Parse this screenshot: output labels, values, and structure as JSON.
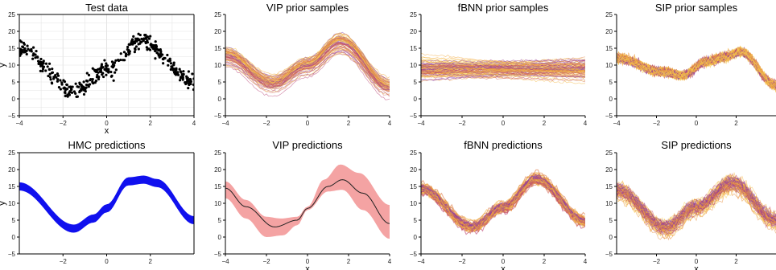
{
  "figure": {
    "panels": [
      {
        "id": "p1",
        "title": "Test data",
        "xlabel": "x",
        "ylabel": "y"
      },
      {
        "id": "p2",
        "title": "VIP prior samples",
        "xlabel": "",
        "ylabel": ""
      },
      {
        "id": "p3",
        "title": "fBNN prior samples",
        "xlabel": "",
        "ylabel": ""
      },
      {
        "id": "p4",
        "title": "SIP prior samples",
        "xlabel": "",
        "ylabel": ""
      },
      {
        "id": "p5",
        "title": "HMC predictions",
        "xlabel": "",
        "ylabel": "y"
      },
      {
        "id": "p6",
        "title": "VIP predictions",
        "xlabel": "x",
        "ylabel": ""
      },
      {
        "id": "p7",
        "title": "fBNN predictions",
        "xlabel": "x",
        "ylabel": ""
      },
      {
        "id": "p8",
        "title": "SIP predictions",
        "xlabel": "x",
        "ylabel": ""
      }
    ]
  },
  "colors": {
    "black": "#000000",
    "blue": "#1010ee",
    "purple": "#7b3fb8",
    "magenta": "#c2456e",
    "orange": "#f0a030",
    "yellow": "#f7d35a",
    "salmon": "#f4a3a3",
    "pale_yellow": "#fbe9a6",
    "grid": "#e4e4e4",
    "axis": "#000000"
  },
  "chart_data": [
    {
      "type": "scatter",
      "title": "Test data",
      "xlabel": "x",
      "ylabel": "y",
      "xlim": [
        -4,
        4
      ],
      "ylim": [
        -5,
        25
      ],
      "xticks": [
        -4,
        -2,
        0,
        2,
        4
      ],
      "yticks": [
        -5,
        0,
        5,
        10,
        15,
        20,
        25
      ],
      "grid": true,
      "series": [
        {
          "x_range": [
            -4,
            4
          ],
          "trend": [
            [
              -4,
              15
            ],
            [
              -1.5,
              2.5
            ],
            [
              0,
              8.5
            ],
            [
              1.6,
              17
            ],
            [
              4,
              5
            ]
          ],
          "noise_sd": 2.0,
          "count": 400
        }
      ]
    },
    {
      "type": "line",
      "title": "VIP prior samples",
      "xlim": [
        -4,
        4
      ],
      "ylim": [
        -5,
        25
      ],
      "xticks": [
        -4,
        -2,
        0,
        2,
        4
      ],
      "yticks": [
        -5,
        0,
        5,
        10,
        15,
        20,
        25
      ],
      "series": [
        {
          "mean": [
            [
              -4,
              13
            ],
            [
              -1.7,
              4.5
            ],
            [
              0,
              10
            ],
            [
              1.6,
              17
            ],
            [
              4,
              3.5
            ]
          ],
          "spread": 4.5,
          "count": 70
        }
      ]
    },
    {
      "type": "line",
      "title": "fBNN prior samples",
      "xlim": [
        -4,
        4
      ],
      "ylim": [
        -5,
        25
      ],
      "xticks": [
        -4,
        -2,
        0,
        2,
        4
      ],
      "yticks": [
        -5,
        0,
        5,
        10,
        15,
        20,
        25
      ],
      "series": [
        {
          "mean": [
            [
              -4,
              8.8
            ],
            [
              4,
              8.8
            ]
          ],
          "spread": 4.0,
          "count": 90
        }
      ]
    },
    {
      "type": "line",
      "title": "SIP prior samples",
      "xlim": [
        -4,
        4
      ],
      "ylim": [
        -5,
        25
      ],
      "xticks": [
        -4,
        -2,
        0,
        2
      ],
      "yticks": [
        -5,
        0,
        5,
        10,
        15,
        20,
        25
      ],
      "series": [
        {
          "mean": [
            [
              -4,
              12
            ],
            [
              -1.7,
              8
            ],
            [
              -0.7,
              7
            ],
            [
              0.5,
              11
            ],
            [
              1.5,
              12.5
            ],
            [
              2.2,
              14
            ],
            [
              4,
              4
            ]
          ],
          "spread": 2.0,
          "count": 80
        }
      ]
    },
    {
      "type": "line",
      "title": "HMC predictions",
      "ylabel": "y",
      "xlim": [
        -4,
        4
      ],
      "ylim": [
        -5,
        25
      ],
      "xticks": [
        -2,
        0,
        2
      ],
      "yticks": [
        -5,
        0,
        5,
        10,
        15,
        20,
        25
      ],
      "series": [
        {
          "mean": [
            [
              -4,
              15
            ],
            [
              -1.5,
              2.5
            ],
            [
              -0.6,
              5.5
            ],
            [
              0,
              8.5
            ],
            [
              1.0,
              16.5
            ],
            [
              1.7,
              17
            ],
            [
              2.3,
              16
            ],
            [
              4,
              5
            ]
          ],
          "band": 1.2
        }
      ]
    },
    {
      "type": "area",
      "title": "VIP predictions",
      "xlabel": "x",
      "xlim": [
        -4,
        4
      ],
      "ylim": [
        -5,
        25
      ],
      "xticks": [
        -4,
        -2,
        0,
        2,
        4
      ],
      "yticks": [
        -5,
        0,
        5,
        10,
        15,
        20,
        25
      ],
      "series": [
        {
          "mean": [
            [
              -4,
              14.5
            ],
            [
              -3,
              9
            ],
            [
              -1.6,
              3
            ],
            [
              -0.5,
              5
            ],
            [
              0,
              8.5
            ],
            [
              1.0,
              15
            ],
            [
              1.7,
              17
            ],
            [
              2.7,
              13
            ],
            [
              4,
              4
            ]
          ],
          "upper": [
            [
              -4,
              16.5
            ],
            [
              -3,
              11
            ],
            [
              -2,
              6
            ],
            [
              -1.3,
              5.5
            ],
            [
              -0.5,
              6
            ],
            [
              0,
              9
            ],
            [
              0.8,
              17
            ],
            [
              1.6,
              21.5
            ],
            [
              2.5,
              19
            ],
            [
              4,
              9.5
            ]
          ],
          "lower": [
            [
              -4,
              11.5
            ],
            [
              -3,
              5.5
            ],
            [
              -2,
              0
            ],
            [
              -1.2,
              0.5
            ],
            [
              -0.5,
              3.5
            ],
            [
              0,
              8
            ],
            [
              1.0,
              13.5
            ],
            [
              1.7,
              14
            ],
            [
              2.7,
              8
            ],
            [
              4,
              -0.5
            ]
          ]
        }
      ]
    },
    {
      "type": "line",
      "title": "fBNN predictions",
      "xlabel": "x",
      "xlim": [
        -4,
        4
      ],
      "ylim": [
        -5,
        25
      ],
      "xticks": [
        -4,
        -2,
        0,
        2,
        4
      ],
      "yticks": [
        -5,
        0,
        5,
        10,
        15,
        20,
        25
      ],
      "series": [
        {
          "mean": [
            [
              -4,
              14
            ],
            [
              -1.5,
              2.8
            ],
            [
              0,
              8.5
            ],
            [
              1.6,
              17
            ],
            [
              4,
              4.5
            ]
          ],
          "spread": 2.0,
          "count": 70
        }
      ]
    },
    {
      "type": "line",
      "title": "SIP predictions",
      "xlabel": "x",
      "xlim": [
        -4,
        4
      ],
      "ylim": [
        -5,
        25
      ],
      "xticks": [
        -2,
        0,
        2
      ],
      "yticks": [
        -5,
        0,
        5,
        10,
        15,
        20,
        25
      ],
      "series": [
        {
          "mean": [
            [
              -4,
              14
            ],
            [
              -1.5,
              3
            ],
            [
              0,
              9
            ],
            [
              1.8,
              16
            ],
            [
              4,
              5
            ]
          ],
          "spread": 4.0,
          "count": 70
        }
      ]
    }
  ]
}
